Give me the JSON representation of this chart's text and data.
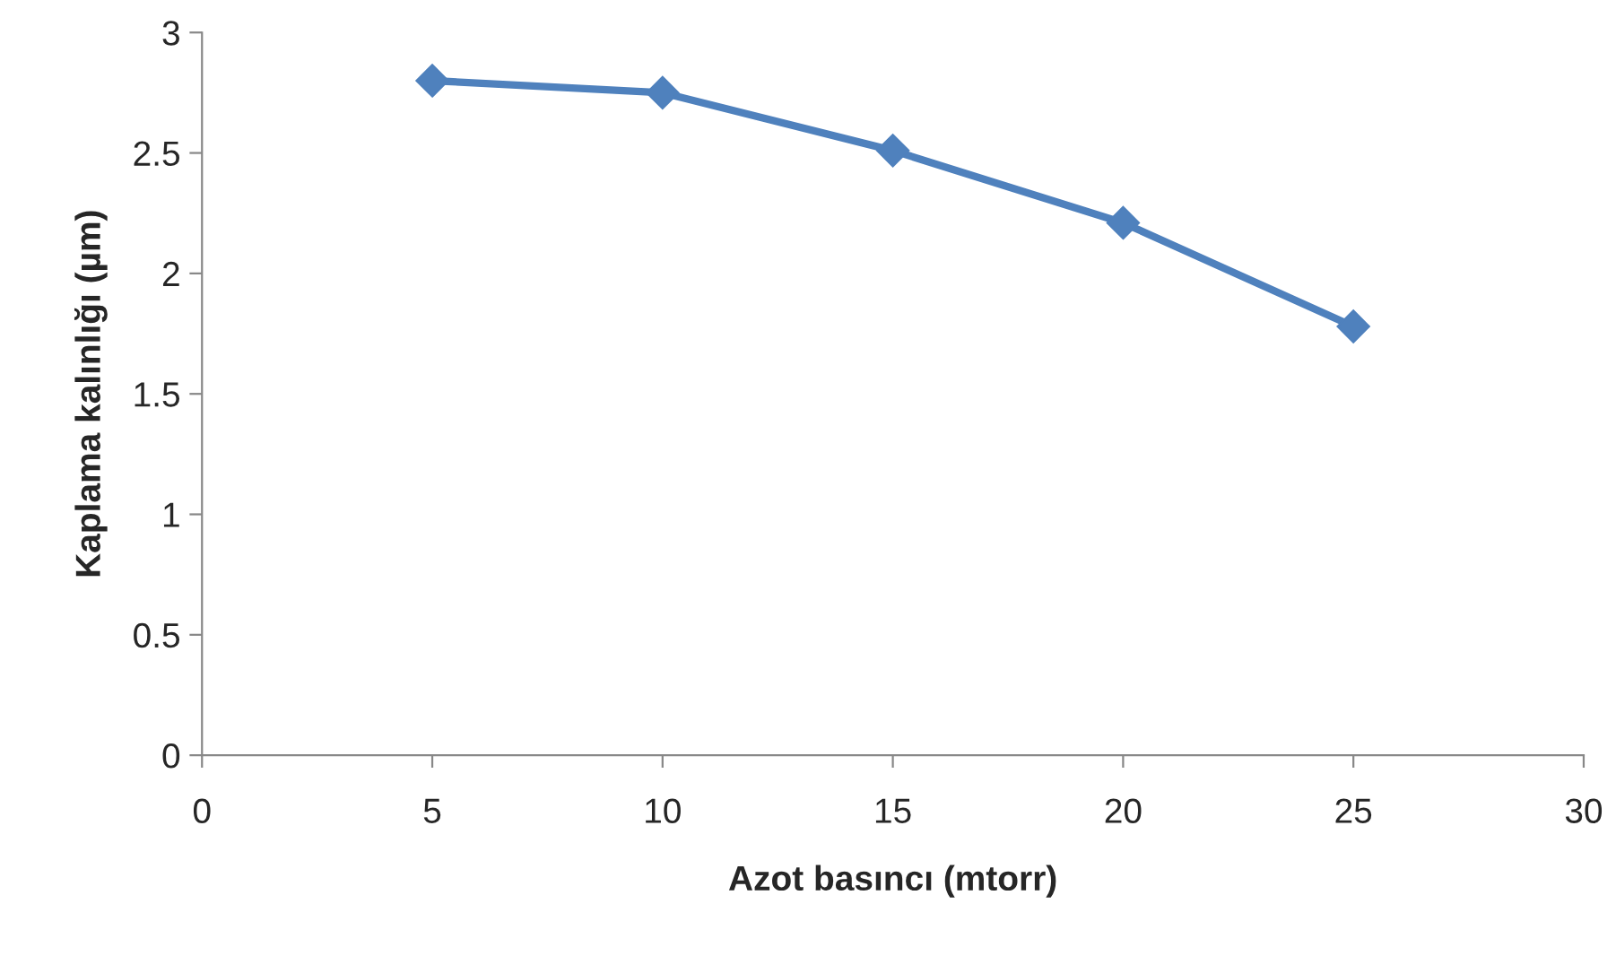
{
  "chart_data": {
    "type": "line",
    "xlabel": "Azot basıncı (mtorr)",
    "ylabel": "Kaplama kalınlığı (µm)",
    "x": [
      5,
      10,
      15,
      20,
      25
    ],
    "series": [
      {
        "color": "#4f81bd",
        "values": [
          2.8,
          2.75,
          2.51,
          2.21,
          1.78
        ]
      }
    ],
    "xlim": [
      0,
      30
    ],
    "xticks": [
      0,
      5,
      10,
      15,
      20,
      25,
      30
    ],
    "ylim": [
      0,
      3
    ],
    "yticks": [
      0,
      0.5,
      1,
      1.5,
      2,
      2.5,
      3
    ],
    "grid": false,
    "legend": false,
    "marker": "diamond",
    "line_style": "solid"
  }
}
